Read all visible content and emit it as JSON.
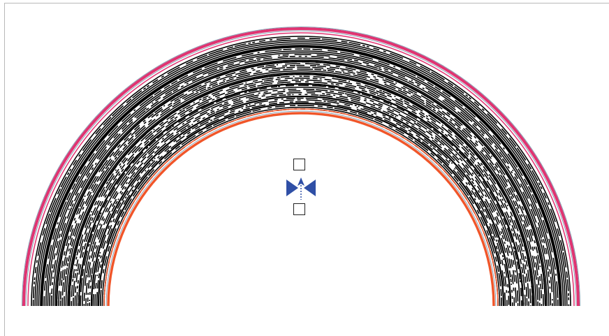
{
  "colors": {
    "outer_edge": "#e03371",
    "inner_edge": "#f0562a",
    "guide_line": "#8a9fb3",
    "widget": "#2f4fa6",
    "frame": "#b8b8b8",
    "rings": "#000000"
  },
  "widget": {
    "center_icon": "bowtie-arrow-icon",
    "top_handle_icon": "square-handle-icon",
    "bottom_handle_icon": "square-handle-icon"
  }
}
